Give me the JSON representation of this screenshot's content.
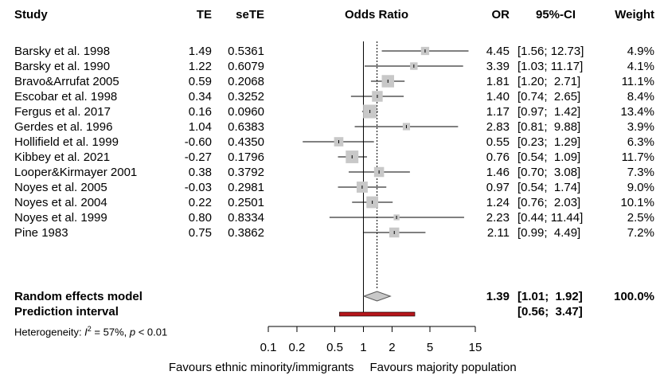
{
  "chart_data": {
    "type": "forest",
    "columns": {
      "study": "Study",
      "te": "TE",
      "sete": "seTE",
      "effect": "Odds Ratio",
      "or": "OR",
      "ci": "95%-CI",
      "weight": "Weight"
    },
    "studies": [
      {
        "study": "Barsky et al. 1998",
        "te": "1.49",
        "sete": "0.5361",
        "or_label": "4.45",
        "ci_label": "[1.56; 12.73]",
        "weight_label": "4.9%",
        "or": 4.45,
        "lower": 1.56,
        "upper": 12.73,
        "weight": 4.9
      },
      {
        "study": "Barsky et al. 1990",
        "te": "1.22",
        "sete": "0.6079",
        "or_label": "3.39",
        "ci_label": "[1.03; 11.17]",
        "weight_label": "4.1%",
        "or": 3.39,
        "lower": 1.03,
        "upper": 11.17,
        "weight": 4.1
      },
      {
        "study": "Bravo&Arrufat 2005",
        "te": "0.59",
        "sete": "0.2068",
        "or_label": "1.81",
        "ci_label": "[1.20;  2.71]",
        "weight_label": "11.1%",
        "or": 1.81,
        "lower": 1.2,
        "upper": 2.71,
        "weight": 11.1
      },
      {
        "study": "Escobar et al. 1998",
        "te": "0.34",
        "sete": "0.3252",
        "or_label": "1.40",
        "ci_label": "[0.74;  2.65]",
        "weight_label": "8.4%",
        "or": 1.4,
        "lower": 0.74,
        "upper": 2.65,
        "weight": 8.4
      },
      {
        "study": "Fergus et al. 2017",
        "te": "0.16",
        "sete": "0.0960",
        "or_label": "1.17",
        "ci_label": "[0.97;  1.42]",
        "weight_label": "13.4%",
        "or": 1.17,
        "lower": 0.97,
        "upper": 1.42,
        "weight": 13.4
      },
      {
        "study": "Gerdes et al. 1996",
        "te": "1.04",
        "sete": "0.6383",
        "or_label": "2.83",
        "ci_label": "[0.81;  9.88]",
        "weight_label": "3.9%",
        "or": 2.83,
        "lower": 0.81,
        "upper": 9.88,
        "weight": 3.9
      },
      {
        "study": "Hollifield et al. 1999",
        "te": "-0.60",
        "sete": "0.4350",
        "or_label": "0.55",
        "ci_label": "[0.23;  1.29]",
        "weight_label": "6.3%",
        "or": 0.55,
        "lower": 0.23,
        "upper": 1.29,
        "weight": 6.3
      },
      {
        "study": "Kibbey et al. 2021",
        "te": "-0.27",
        "sete": "0.1796",
        "or_label": "0.76",
        "ci_label": "[0.54;  1.09]",
        "weight_label": "11.7%",
        "or": 0.76,
        "lower": 0.54,
        "upper": 1.09,
        "weight": 11.7
      },
      {
        "study": "Looper&Kirmayer 2001",
        "te": "0.38",
        "sete": "0.3792",
        "or_label": "1.46",
        "ci_label": "[0.70;  3.08]",
        "weight_label": "7.3%",
        "or": 1.46,
        "lower": 0.7,
        "upper": 3.08,
        "weight": 7.3
      },
      {
        "study": "Noyes et al. 2005",
        "te": "-0.03",
        "sete": "0.2981",
        "or_label": "0.97",
        "ci_label": "[0.54;  1.74]",
        "weight_label": "9.0%",
        "or": 0.97,
        "lower": 0.54,
        "upper": 1.74,
        "weight": 9.0
      },
      {
        "study": "Noyes et al. 2004",
        "te": "0.22",
        "sete": "0.2501",
        "or_label": "1.24",
        "ci_label": "[0.76;  2.03]",
        "weight_label": "10.1%",
        "or": 1.24,
        "lower": 0.76,
        "upper": 2.03,
        "weight": 10.1
      },
      {
        "study": "Noyes et al. 1999",
        "te": "0.80",
        "sete": "0.8334",
        "or_label": "2.23",
        "ci_label": "[0.44; 11.44]",
        "weight_label": "2.5%",
        "or": 2.23,
        "lower": 0.44,
        "upper": 11.44,
        "weight": 2.5
      },
      {
        "study": "Pine 1983",
        "te": "0.75",
        "sete": "0.3862",
        "or_label": "2.11",
        "ci_label": "[0.99;  4.49]",
        "weight_label": "7.2%",
        "or": 2.11,
        "lower": 0.99,
        "upper": 4.49,
        "weight": 7.2
      }
    ],
    "random_effects": {
      "label": "Random effects model",
      "or_label": "1.39",
      "ci_label": "[1.01;  1.92]",
      "weight_label": "100.0%",
      "or": 1.39,
      "lower": 1.01,
      "upper": 1.92
    },
    "prediction_interval": {
      "label": "Prediction interval",
      "ci_label": "[0.56;  3.47]",
      "lower": 0.56,
      "upper": 3.47
    },
    "heterogeneity": {
      "prefix": "Heterogeneity: ",
      "i2_symbol": "I",
      "i2_sup": "2",
      "i2_value": " = 57%, ",
      "p_symbol": "p",
      "p_value": " < 0.01"
    },
    "x_axis": {
      "scale": "log",
      "xlim": [
        0.1,
        15
      ],
      "ticks": [
        0.1,
        0.2,
        0.5,
        1,
        2,
        5,
        15
      ],
      "tick_labels": [
        "0.1",
        "0.2",
        "0.5",
        "1",
        "2",
        "5",
        "15"
      ]
    },
    "reference_line": 1,
    "left_label": "Favours ethnic minority/immigrants",
    "right_label": "Favours majority population",
    "colors": {
      "square": "#c8c8c8",
      "diamond": "#c8c8c8",
      "prediction": "#b5161b",
      "line": "#000000"
    }
  }
}
